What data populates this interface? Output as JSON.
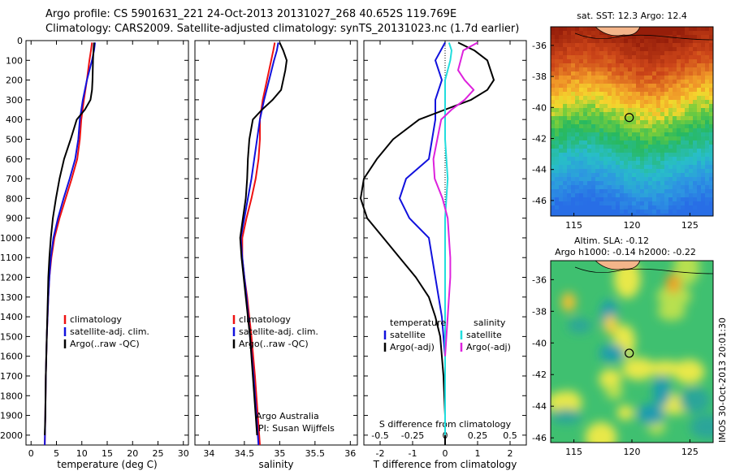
{
  "title": {
    "line1": "Argo profile: CS 5901631_221 24-Oct-2013 20131027_268 40.652S 119.769E",
    "line2": "Climatology: CARS2009. Satellite-adjusted climatology: synTS_20131023.nc (1.7d earlier)"
  },
  "colors": {
    "climatology": "#ee1111",
    "satellite": "#1111dd",
    "argo": "#000000",
    "satellite_s": "#22dddd",
    "argo_s": "#dd22dd"
  },
  "chart_data": [
    {
      "type": "line",
      "id": "temperature",
      "xlabel": "temperature (deg C)",
      "xlim": [
        -1,
        31
      ],
      "ylim": [
        2050,
        0
      ],
      "xticks": [
        0,
        5,
        10,
        15,
        20,
        25,
        30
      ],
      "yticks": [
        0,
        100,
        200,
        300,
        400,
        500,
        600,
        700,
        800,
        900,
        1000,
        1100,
        1200,
        1300,
        1400,
        1500,
        1600,
        1700,
        1800,
        1900,
        2000
      ],
      "legend": [
        "climatology",
        "satellite-adj. clim.",
        "Argo(..raw -QC)"
      ],
      "series": [
        {
          "name": "climatology",
          "color": "#ee1111",
          "depth": [
            10,
            50,
            100,
            200,
            300,
            400,
            500,
            600,
            700,
            800,
            900,
            1000,
            1100,
            1200,
            1300,
            1500,
            1700,
            1900,
            2050
          ],
          "values": [
            12.0,
            11.8,
            11.5,
            11.0,
            10.4,
            9.9,
            9.6,
            9.1,
            8.0,
            6.8,
            5.6,
            4.6,
            4.0,
            3.6,
            3.4,
            3.1,
            2.9,
            2.8,
            2.7
          ]
        },
        {
          "name": "satellite-adj. clim.",
          "color": "#1111dd",
          "depth": [
            10,
            50,
            100,
            200,
            300,
            400,
            500,
            600,
            700,
            800,
            900,
            1000,
            1100,
            1200,
            1300,
            1500,
            1700,
            1900,
            2050
          ],
          "values": [
            12.6,
            12.4,
            12.0,
            11.0,
            10.2,
            9.6,
            9.3,
            8.7,
            7.6,
            6.4,
            5.3,
            4.4,
            3.9,
            3.6,
            3.4,
            3.1,
            2.9,
            2.8,
            2.7
          ]
        },
        {
          "name": "Argo(..raw -QC)",
          "color": "#000000",
          "depth": [
            10,
            50,
            100,
            200,
            250,
            300,
            350,
            400,
            500,
            600,
            700,
            800,
            900,
            1000,
            1100,
            1200,
            1300,
            1500,
            1700,
            1900,
            2000
          ],
          "values": [
            12.4,
            12.3,
            12.2,
            12.1,
            12.0,
            11.7,
            10.6,
            9.0,
            7.8,
            6.5,
            5.6,
            4.9,
            4.3,
            3.9,
            3.6,
            3.4,
            3.3,
            3.1,
            2.9,
            2.8,
            2.7
          ]
        }
      ]
    },
    {
      "type": "line",
      "id": "salinity",
      "xlabel": "salinity",
      "xlim": [
        33.8,
        36.1
      ],
      "ylim": [
        2050,
        0
      ],
      "xticks": [
        34,
        34.5,
        35,
        35.5,
        36
      ],
      "legend": [
        "climatology",
        "satellite-adj. clim.",
        "Argo(..raw -QC)"
      ],
      "series": [
        {
          "name": "climatology",
          "color": "#ee1111",
          "depth": [
            10,
            50,
            100,
            200,
            300,
            400,
            500,
            600,
            700,
            800,
            900,
            1000,
            1100,
            1200,
            1300,
            1500,
            1700,
            1900,
            2050
          ],
          "values": [
            34.93,
            34.91,
            34.88,
            34.82,
            34.76,
            34.72,
            34.72,
            34.7,
            34.66,
            34.6,
            34.53,
            34.47,
            34.47,
            34.5,
            34.54,
            34.6,
            34.65,
            34.69,
            34.72
          ]
        },
        {
          "name": "satellite-adj. clim.",
          "color": "#1111dd",
          "depth": [
            10,
            50,
            100,
            200,
            300,
            400,
            500,
            600,
            700,
            800,
            900,
            1000,
            1100,
            1200,
            1300,
            1500,
            1700,
            1900,
            2050
          ],
          "values": [
            34.98,
            34.96,
            34.92,
            34.85,
            34.78,
            34.72,
            34.68,
            34.64,
            34.6,
            34.55,
            34.5,
            34.45,
            34.47,
            34.5,
            34.53,
            34.58,
            34.63,
            34.67,
            34.7
          ]
        },
        {
          "name": "Argo(..raw -QC)",
          "color": "#000000",
          "depth": [
            10,
            50,
            100,
            150,
            200,
            250,
            300,
            350,
            400,
            500,
            600,
            700,
            800,
            900,
            1000,
            1100,
            1200,
            1300,
            1500,
            1700,
            1900,
            2000
          ],
          "values": [
            35.0,
            35.05,
            35.1,
            35.08,
            35.05,
            35.02,
            34.9,
            34.75,
            34.62,
            34.57,
            34.55,
            34.54,
            34.52,
            34.48,
            34.44,
            34.46,
            34.49,
            34.52,
            34.58,
            34.62,
            34.66,
            34.68
          ]
        }
      ],
      "annotations": [
        "Argo Australia",
        "PI: Susan Wijffels"
      ]
    },
    {
      "type": "line",
      "id": "difference",
      "xlabel": "T difference from climatology",
      "xlabel_top": "S difference from climatology",
      "xlim": [
        -2.5,
        2.5
      ],
      "ylim": [
        2050,
        0
      ],
      "xticks": [
        -2,
        -1,
        0,
        1,
        2
      ],
      "xticklabels": [
        "-2",
        "-1",
        "0",
        "1",
        "2"
      ],
      "s_ticks": [
        -0.5,
        -0.25,
        0,
        0.25,
        0.5
      ],
      "s_ticklabels": [
        "-0.5",
        "-0.25",
        "0",
        "0.25",
        "0.5"
      ],
      "legend_headers": [
        "temperature",
        "salinity"
      ],
      "legend": [
        "satellite",
        "Argo(-adj)",
        "satellite",
        "Argo(-adj)"
      ],
      "series": [
        {
          "name": "satellite",
          "color": "#1111dd",
          "depth": [
            10,
            100,
            200,
            300,
            400,
            500,
            600,
            700,
            800,
            900,
            1000,
            1100,
            1200,
            1300,
            1400,
            1500,
            1600,
            1800,
            2000
          ],
          "values": [
            0.0,
            -0.3,
            -0.1,
            -0.3,
            -0.3,
            -0.4,
            -0.5,
            -1.2,
            -1.4,
            -1.1,
            -0.5,
            -0.4,
            -0.3,
            -0.2,
            -0.1,
            -0.05,
            0.0,
            0.0,
            0.0
          ]
        },
        {
          "name": "Argo(-adj)",
          "color": "#000000",
          "depth": [
            10,
            50,
            100,
            150,
            200,
            250,
            300,
            350,
            400,
            500,
            600,
            700,
            800,
            900,
            1000,
            1100,
            1200,
            1300,
            1400,
            1500,
            1700,
            1900,
            2050
          ],
          "values": [
            0.4,
            0.9,
            1.3,
            1.4,
            1.5,
            1.3,
            0.8,
            0.0,
            -0.8,
            -1.6,
            -2.1,
            -2.5,
            -2.6,
            -2.4,
            -1.9,
            -1.4,
            -0.9,
            -0.5,
            -0.3,
            -0.15,
            -0.05,
            0.0,
            0.0
          ]
        },
        {
          "name": "satellite",
          "color": "#22dddd",
          "depth": [
            10,
            50,
            100,
            200,
            300,
            400,
            500,
            600,
            700,
            800,
            900,
            1000,
            1200,
            1500,
            1700,
            2000
          ],
          "values": [
            0.03,
            0.05,
            0.04,
            0.0,
            0.0,
            0.0,
            0.0,
            0.01,
            0.02,
            0.01,
            0.0,
            0.0,
            0.0,
            0.0,
            0.0,
            0.0
          ]
        },
        {
          "name": "Argo(-adj)",
          "color": "#dd22dd",
          "depth": [
            10,
            50,
            100,
            150,
            200,
            250,
            300,
            350,
            400,
            500,
            600,
            700,
            800,
            900,
            1000,
            1100,
            1200,
            1300,
            1400,
            1500,
            1600
          ],
          "values": [
            0.25,
            0.14,
            0.12,
            0.1,
            0.15,
            0.22,
            0.15,
            0.05,
            -0.03,
            -0.06,
            -0.09,
            -0.08,
            -0.02,
            0.02,
            0.03,
            0.04,
            0.04,
            0.03,
            0.02,
            0.01,
            0.0
          ]
        }
      ]
    },
    {
      "type": "heatmap",
      "id": "sst-map",
      "title": "sat. SST: 12.3 Argo: 12.4",
      "xlim": [
        113,
        127
      ],
      "ylim": [
        -47,
        -34.8
      ],
      "xticks": [
        115,
        120,
        125
      ],
      "yticks": [
        -36,
        -38,
        -40,
        -42,
        -44,
        -46
      ],
      "float_position": {
        "lon": 119.77,
        "lat": -40.65
      }
    },
    {
      "type": "heatmap",
      "id": "sla-map",
      "title": "Altim. SLA: -0.12",
      "subtitle": "Argo h1000: -0.14 h2000: -0.22",
      "xlim": [
        113,
        127
      ],
      "ylim": [
        -46.3,
        -34.8
      ],
      "xticks": [
        115,
        120,
        125
      ],
      "yticks": [
        -36,
        -38,
        -40,
        -42,
        -44,
        -46
      ],
      "float_position": {
        "lon": 119.77,
        "lat": -40.65
      }
    }
  ],
  "side_label": "IMOS 30-Oct-2013 20:01:30"
}
